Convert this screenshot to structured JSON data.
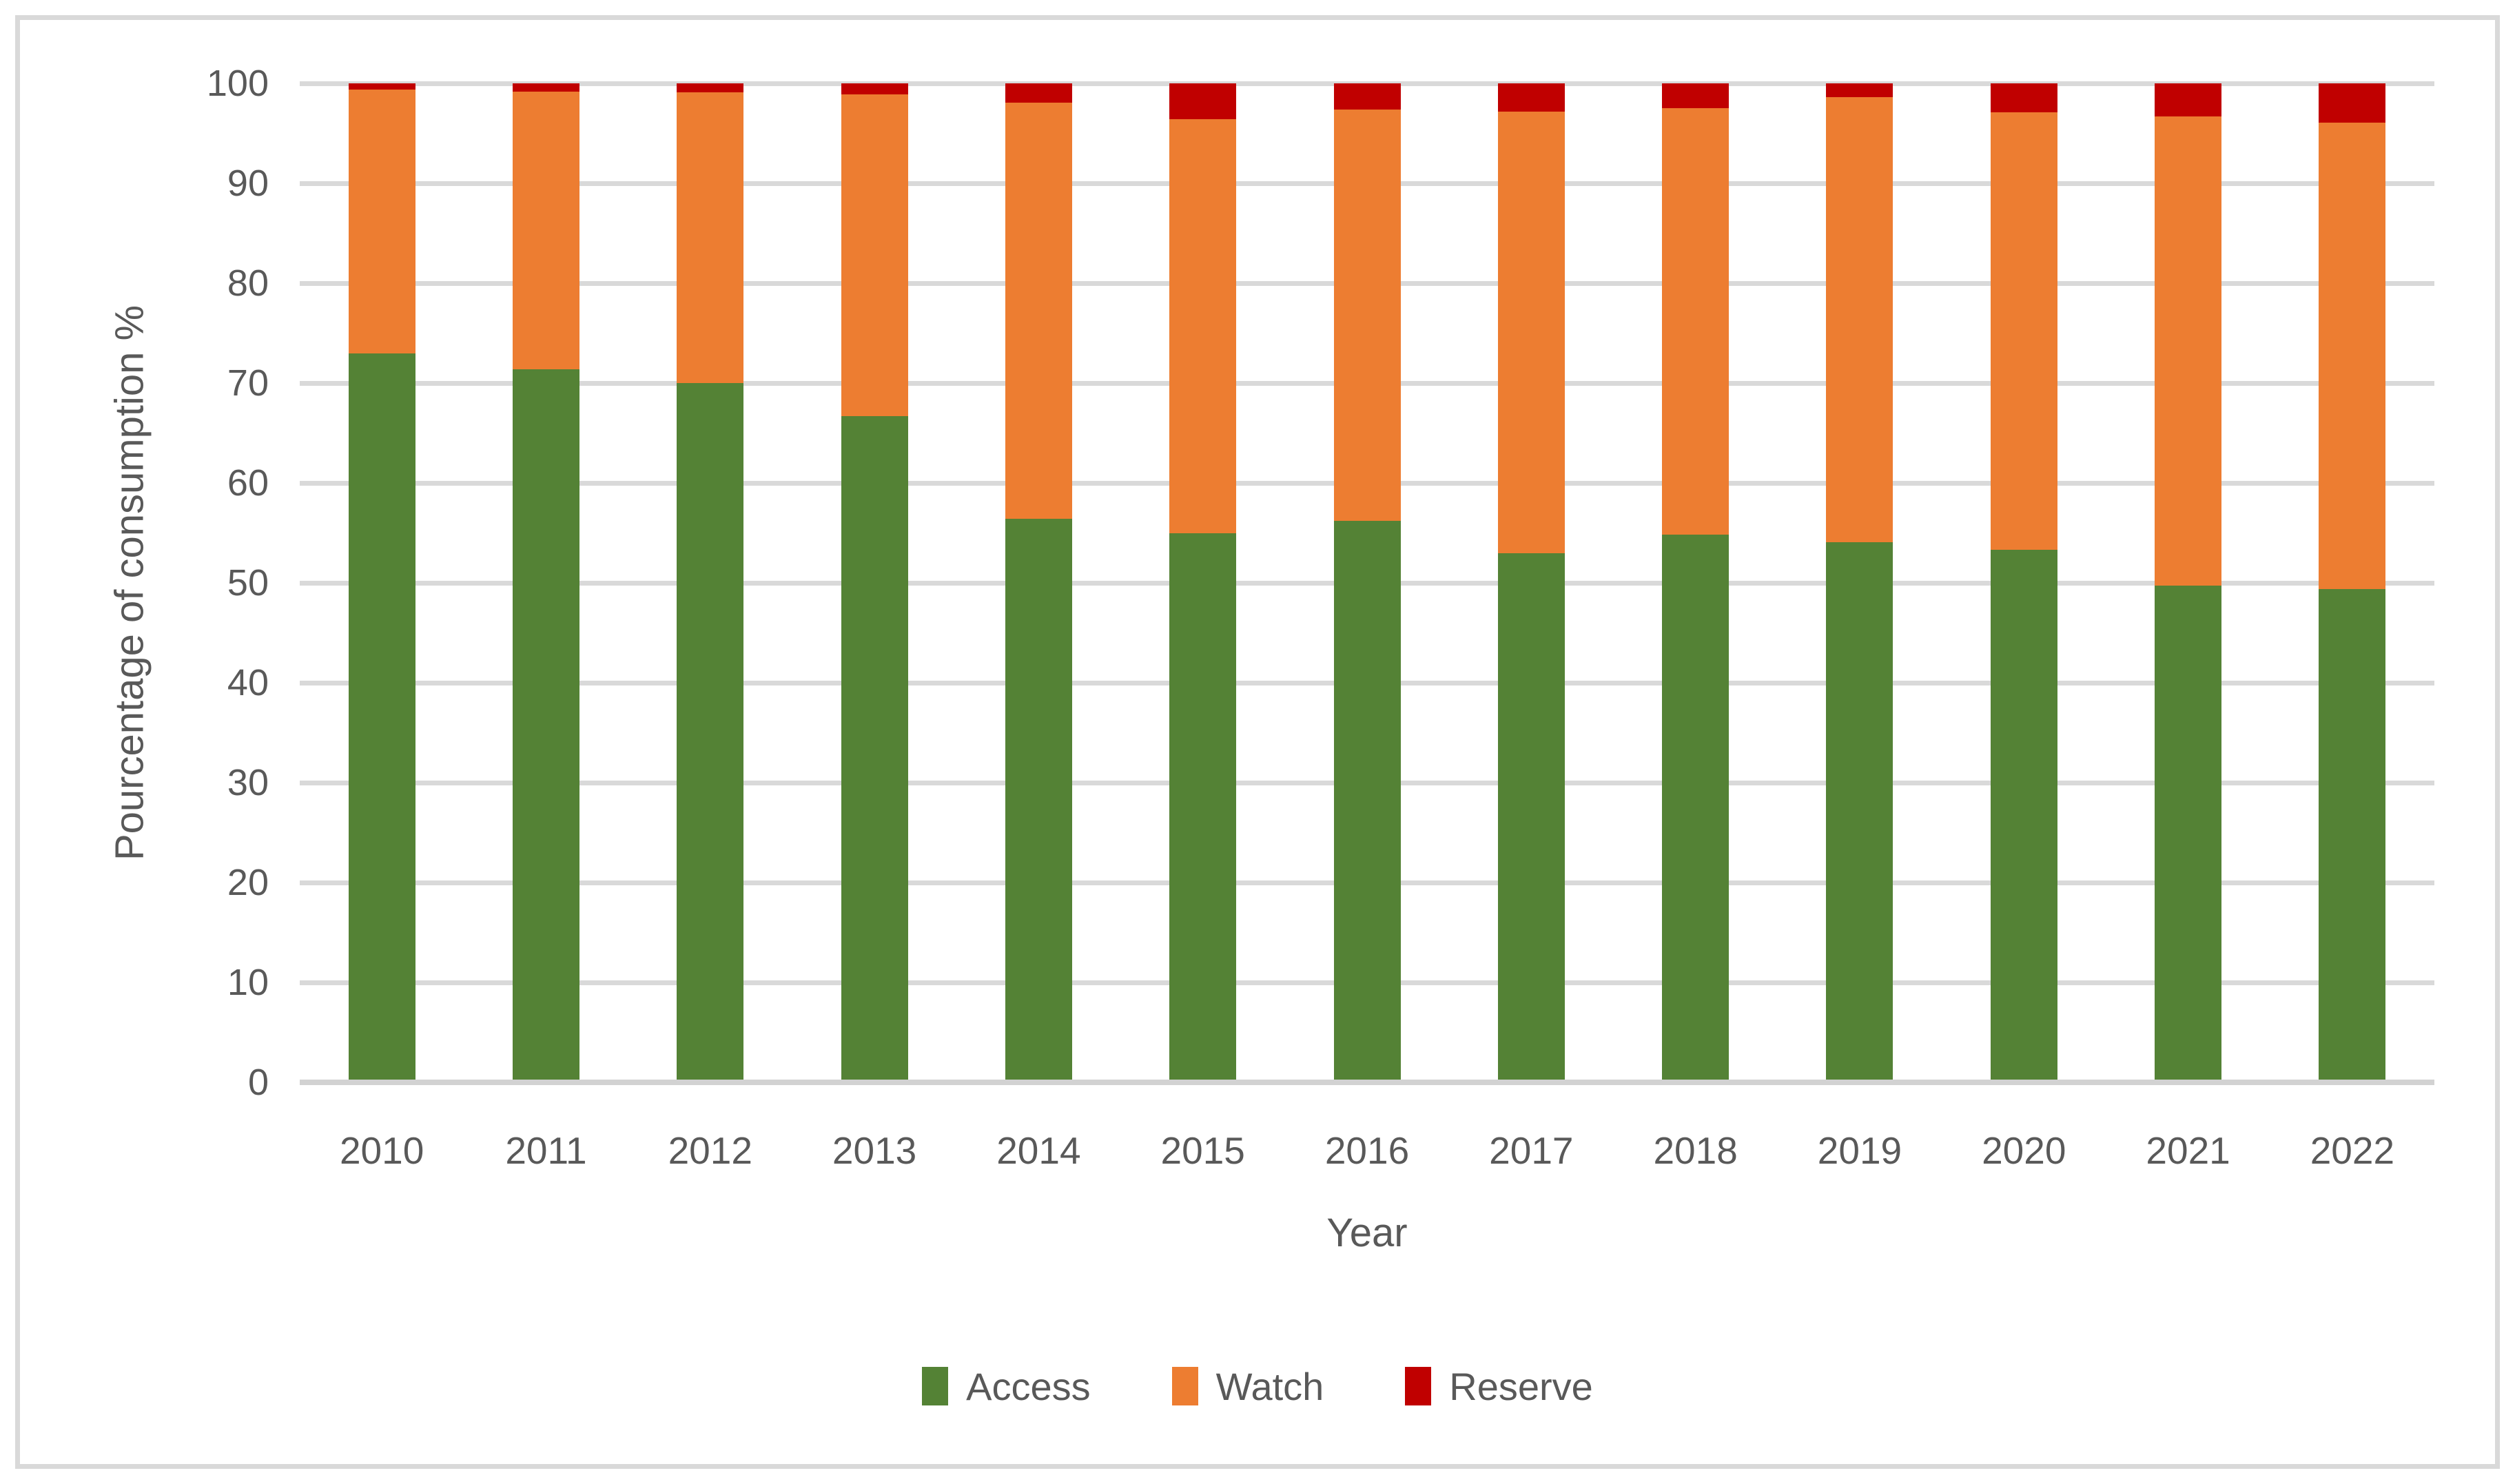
{
  "colors": {
    "access_green": "#548235",
    "watch_orange": "#ED7D31",
    "reserve_red": "#C00000",
    "gridline": "#d9d9d9",
    "axis_line": "#d2d2d2",
    "figure_border": "#d9d9d9",
    "text": "#595959",
    "background": "#ffffff"
  },
  "chart_data": {
    "type": "bar",
    "stacked": true,
    "stacked_total": 100,
    "title": "",
    "xlabel": "Year",
    "ylabel": "Pourcentage of consumption %",
    "ylim": [
      0,
      100
    ],
    "ytick_step": 10,
    "yticks": [
      0,
      10,
      20,
      30,
      40,
      50,
      60,
      70,
      80,
      90,
      100
    ],
    "grid": "horizontal",
    "legend_position": "bottom",
    "categories": [
      "2010",
      "2011",
      "2012",
      "2013",
      "2014",
      "2015",
      "2016",
      "2017",
      "2018",
      "2019",
      "2020",
      "2021",
      "2022"
    ],
    "series": [
      {
        "name": "Access",
        "color": "#548235",
        "values": [
          73.0,
          71.4,
          70.0,
          66.7,
          56.4,
          55.0,
          56.2,
          53.0,
          54.8,
          54.1,
          53.3,
          49.7,
          49.4
        ]
      },
      {
        "name": "Watch",
        "color": "#ED7D31",
        "values": [
          26.4,
          27.8,
          29.1,
          32.2,
          41.7,
          41.4,
          41.2,
          44.2,
          42.7,
          44.5,
          43.8,
          47.0,
          46.7
        ]
      },
      {
        "name": "Reserve",
        "color": "#C00000",
        "values": [
          0.6,
          0.8,
          0.9,
          1.1,
          1.9,
          3.6,
          2.6,
          2.8,
          2.5,
          1.4,
          2.9,
          3.3,
          3.9
        ]
      }
    ]
  }
}
